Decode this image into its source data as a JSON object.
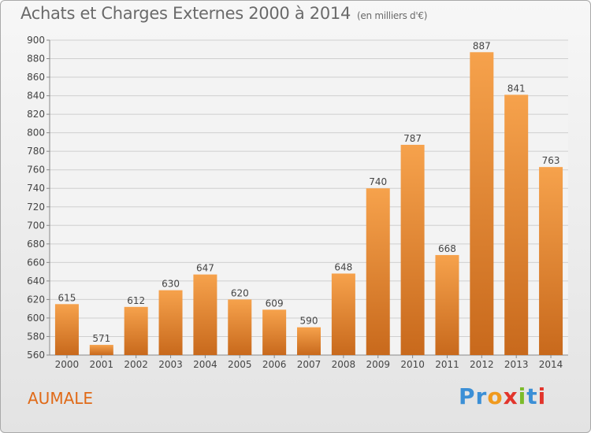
{
  "header": {
    "title": "Achats et Charges Externes 2000 à 2014",
    "unit": "(en milliers d'€)"
  },
  "footer": {
    "town": "AUMALE",
    "brand_letters": [
      "P",
      "r",
      "o",
      "x",
      "i",
      "t",
      "i"
    ]
  },
  "colors": {
    "bar_light": "#f6a24c",
    "bar_dark": "#c8691c",
    "grid": "#cfcfcf",
    "axis_text": "#444444",
    "title_text": "#6a6a6a",
    "town_text": "#e06a18",
    "brand": [
      "#3b8fd6",
      "#3b8fd6",
      "#f09a1e",
      "#e2352c",
      "#7cbb2a",
      "#3b8fd6",
      "#e2352c"
    ]
  },
  "chart_data": {
    "type": "bar",
    "title": "Achats et Charges Externes 2000 à 2014",
    "subtitle": "(en milliers d'€)",
    "categories": [
      "2000",
      "2001",
      "2002",
      "2003",
      "2004",
      "2005",
      "2006",
      "2007",
      "2008",
      "2009",
      "2010",
      "2011",
      "2012",
      "2013",
      "2014"
    ],
    "values": [
      615,
      571,
      612,
      630,
      647,
      620,
      609,
      590,
      648,
      740,
      787,
      668,
      887,
      841,
      763
    ],
    "ylim": [
      560,
      900
    ],
    "yticks": [
      560,
      580,
      600,
      620,
      640,
      660,
      680,
      700,
      720,
      740,
      760,
      780,
      800,
      820,
      840,
      860,
      880,
      900
    ],
    "grid": true,
    "data_labels": true
  }
}
